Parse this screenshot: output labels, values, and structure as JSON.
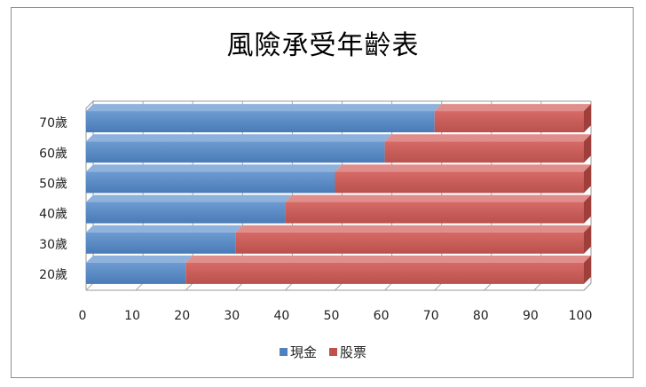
{
  "chart_data": {
    "type": "bar",
    "orientation": "horizontal",
    "stacked": "percent",
    "title": "風險承受年齡表",
    "categories": [
      "20歲",
      "30歲",
      "40歲",
      "50歲",
      "60歲",
      "70歲"
    ],
    "series": [
      {
        "name": "現金",
        "values": [
          20,
          30,
          40,
          50,
          60,
          70
        ],
        "color": "#4f81bd"
      },
      {
        "name": "股票",
        "values": [
          80,
          70,
          60,
          50,
          40,
          30
        ],
        "color": "#c0504d"
      }
    ],
    "xticks": [
      "0",
      "10",
      "20",
      "30",
      "40",
      "50",
      "60",
      "70",
      "80",
      "90",
      "100"
    ],
    "xlim": [
      0,
      100
    ],
    "grid": true,
    "legend_position": "bottom"
  }
}
